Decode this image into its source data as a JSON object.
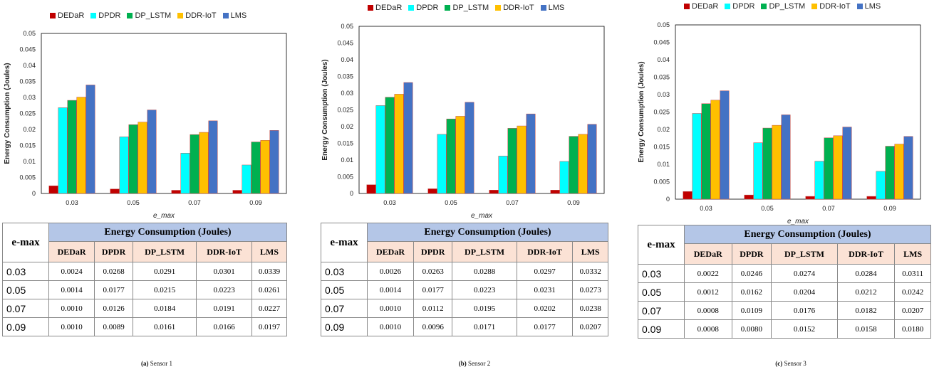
{
  "legend": [
    {
      "name": "DEDaR",
      "color": "#c00000"
    },
    {
      "name": "DPDR",
      "color": "#00ffff"
    },
    {
      "name": "DP_LSTM",
      "color": "#00b050"
    },
    {
      "name": "DDR-IoT",
      "color": "#ffc000"
    },
    {
      "name": "LMS",
      "color": "#4472c4"
    }
  ],
  "table_header": {
    "title": "Energy Consumption (Joules)",
    "row_label": "e-max",
    "columns": [
      "DEDaR",
      "DPDR",
      "DP_LSTM",
      "DDR-IoT",
      "LMS"
    ]
  },
  "chart_data": [
    {
      "type": "bar",
      "xlabel": "e_max",
      "ylabel": "Energy Consumption (Joules)",
      "ylim": [
        0,
        0.05
      ],
      "yticks": [
        "0",
        "0.005",
        "0.01",
        "0.015",
        "0.02",
        "0.025",
        "0.03",
        "0.035",
        "0.04",
        "0.045",
        "0.05"
      ],
      "categories": [
        "0.03",
        "0.05",
        "0.07",
        "0.09"
      ],
      "series": [
        {
          "name": "DEDaR",
          "values": [
            0.0024,
            0.0014,
            0.001,
            0.001
          ]
        },
        {
          "name": "DPDR",
          "values": [
            0.0268,
            0.0177,
            0.0126,
            0.0089
          ]
        },
        {
          "name": "DP_LSTM",
          "values": [
            0.0291,
            0.0215,
            0.0184,
            0.0161
          ]
        },
        {
          "name": "DDR-IoT",
          "values": [
            0.0301,
            0.0223,
            0.0191,
            0.0166
          ]
        },
        {
          "name": "LMS",
          "values": [
            0.0339,
            0.0261,
            0.0227,
            0.0197
          ]
        }
      ],
      "table_rows": [
        [
          "0.03",
          "0.0024",
          "0.0268",
          "0.0291",
          "0.0301",
          "0.0339"
        ],
        [
          "0.05",
          "0.0014",
          "0.0177",
          "0.0215",
          "0.0223",
          "0.0261"
        ],
        [
          "0.07",
          "0.0010",
          "0.0126",
          "0.0184",
          "0.0191",
          "0.0227"
        ],
        [
          "0.09",
          "0.0010",
          "0.0089",
          "0.0161",
          "0.0166",
          "0.0197"
        ]
      ],
      "caption_label": "(a)",
      "caption_text": "Sensor 1"
    },
    {
      "type": "bar",
      "xlabel": "e_max",
      "ylabel": "Energy Consumption (Joules)",
      "ylim": [
        0,
        0.05
      ],
      "yticks": [
        "0",
        "0.005",
        "0.01",
        "0.015",
        "0.02",
        "0.025",
        "0.03",
        "0.035",
        "0.04",
        "0.045",
        "0.05"
      ],
      "categories": [
        "0.03",
        "0.05",
        "0.07",
        "0.09"
      ],
      "series": [
        {
          "name": "DEDaR",
          "values": [
            0.0026,
            0.0014,
            0.001,
            0.001
          ]
        },
        {
          "name": "DPDR",
          "values": [
            0.0263,
            0.0177,
            0.0112,
            0.0096
          ]
        },
        {
          "name": "DP_LSTM",
          "values": [
            0.0288,
            0.0223,
            0.0195,
            0.0171
          ]
        },
        {
          "name": "DDR-IoT",
          "values": [
            0.0297,
            0.0231,
            0.0202,
            0.0177
          ]
        },
        {
          "name": "LMS",
          "values": [
            0.0332,
            0.0273,
            0.0238,
            0.0207
          ]
        }
      ],
      "table_rows": [
        [
          "0.03",
          "0.0026",
          "0.0263",
          "0.0288",
          "0.0297",
          "0.0332"
        ],
        [
          "0.05",
          "0.0014",
          "0.0177",
          "0.0223",
          "0.0231",
          "0.0273"
        ],
        [
          "0.07",
          "0.0010",
          "0.0112",
          "0.0195",
          "0.0202",
          "0.0238"
        ],
        [
          "0.09",
          "0.0010",
          "0.0096",
          "0.0171",
          "0.0177",
          "0.0207"
        ]
      ],
      "caption_label": "(b)",
      "caption_text": "Sensor 2"
    },
    {
      "type": "bar",
      "xlabel": "e_max",
      "ylabel": "Energy Consumption (Joules)",
      "ylim": [
        0,
        0.05
      ],
      "yticks": [
        "0",
        "0.005",
        "0.01",
        "0.015",
        "0.02",
        "0.025",
        "0.03",
        "0.035",
        "0.04",
        "0.045",
        "0.05"
      ],
      "categories": [
        "0.03",
        "0.05",
        "0.07",
        "0.09"
      ],
      "series": [
        {
          "name": "DEDaR",
          "values": [
            0.0022,
            0.0012,
            0.0008,
            0.0008
          ]
        },
        {
          "name": "DPDR",
          "values": [
            0.0246,
            0.0162,
            0.0109,
            0.008
          ]
        },
        {
          "name": "DP_LSTM",
          "values": [
            0.0274,
            0.0204,
            0.0176,
            0.0152
          ]
        },
        {
          "name": "DDR-IoT",
          "values": [
            0.0284,
            0.0212,
            0.0182,
            0.0158
          ]
        },
        {
          "name": "LMS",
          "values": [
            0.0311,
            0.0242,
            0.0207,
            0.018
          ]
        }
      ],
      "table_rows": [
        [
          "0.03",
          "0.0022",
          "0.0246",
          "0.0274",
          "0.0284",
          "0.0311"
        ],
        [
          "0.05",
          "0.0012",
          "0.0162",
          "0.0204",
          "0.0212",
          "0.0242"
        ],
        [
          "0.07",
          "0.0008",
          "0.0109",
          "0.0176",
          "0.0182",
          "0.0207"
        ],
        [
          "0.09",
          "0.0008",
          "0.0080",
          "0.0152",
          "0.0158",
          "0.0180"
        ]
      ],
      "caption_label": "(c)",
      "caption_text": "Sensor 3"
    }
  ]
}
